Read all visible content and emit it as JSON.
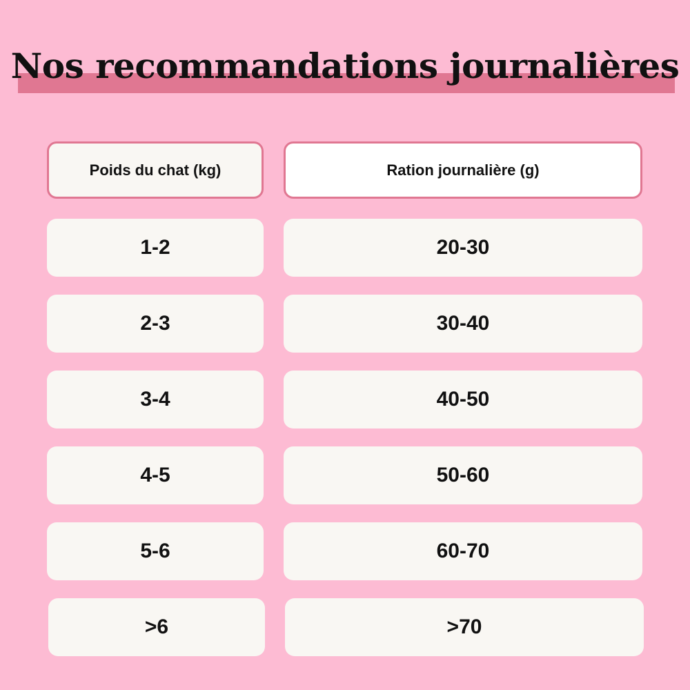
{
  "title": "Nos recommandations journalières",
  "headers": {
    "weight": "Poids du chat (kg)",
    "ration": "Ration journalière (g)"
  },
  "rows": [
    {
      "weight": "1-2",
      "ration": "20-30"
    },
    {
      "weight": "2-3",
      "ration": "30-40"
    },
    {
      "weight": "3-4",
      "ration": "40-50"
    },
    {
      "weight": "4-5",
      "ration": "50-60"
    },
    {
      "weight": "5-6",
      "ration": "60-70"
    },
    {
      "weight": ">6",
      "ration": ">70"
    }
  ],
  "colors": {
    "background": "#fdbbd3",
    "accent": "#e07792",
    "cell": "#f9f7f3"
  }
}
